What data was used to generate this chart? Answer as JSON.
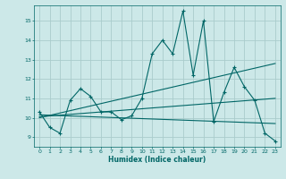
{
  "xlabel": "Humidex (Indice chaleur)",
  "bg_color": "#cce8e8",
  "line_color": "#006666",
  "grid_color": "#aacccc",
  "xlim": [
    -0.5,
    23.5
  ],
  "ylim": [
    8.5,
    15.8
  ],
  "yticks": [
    9,
    10,
    11,
    12,
    13,
    14,
    15
  ],
  "xticks": [
    0,
    1,
    2,
    3,
    4,
    5,
    6,
    7,
    8,
    9,
    10,
    11,
    12,
    13,
    14,
    15,
    16,
    17,
    18,
    19,
    20,
    21,
    22,
    23
  ],
  "series1_x": [
    0,
    1,
    2,
    3,
    4,
    5,
    6,
    7,
    8,
    9,
    10,
    11,
    12,
    13,
    14,
    15,
    16,
    17,
    18,
    19,
    20,
    21,
    22,
    23
  ],
  "series1_y": [
    10.3,
    9.5,
    9.2,
    10.9,
    11.5,
    11.1,
    10.3,
    10.3,
    9.9,
    10.1,
    11.0,
    13.3,
    14.0,
    13.3,
    15.5,
    12.2,
    15.0,
    9.8,
    11.3,
    12.6,
    11.6,
    10.9,
    9.2,
    8.8
  ],
  "trend1_x": [
    0,
    23
  ],
  "trend1_y": [
    10.15,
    9.7
  ],
  "trend2_x": [
    0,
    23
  ],
  "trend2_y": [
    10.05,
    11.0
  ],
  "trend3_x": [
    0,
    23
  ],
  "trend3_y": [
    10.0,
    12.8
  ]
}
